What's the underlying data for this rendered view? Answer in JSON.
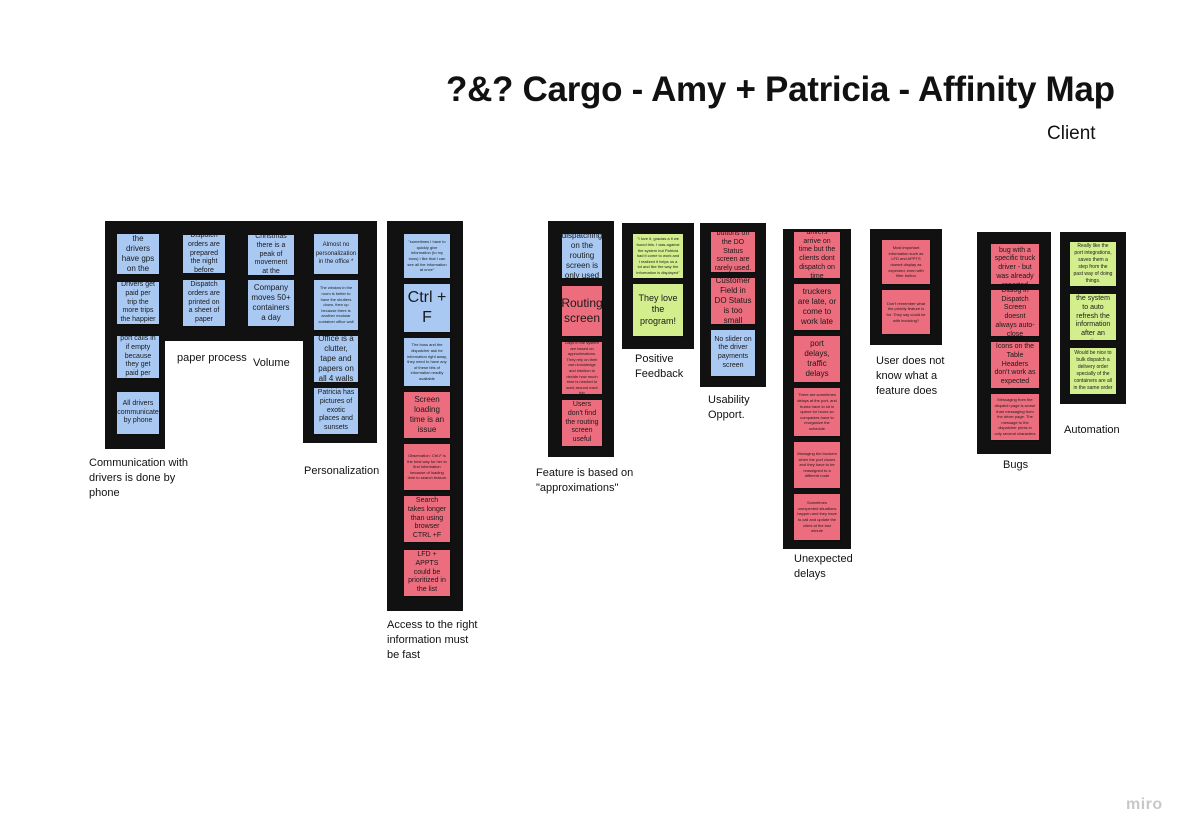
{
  "title": "?&? Cargo - Amy + Patricia - Affinity Map",
  "subtitle": "Client",
  "brand": "miro",
  "colors": {
    "blue_note": "#a9c9f2",
    "red_note": "#ec6d7d",
    "green_note": "#d3ee8c",
    "column": "#111111"
  },
  "groups": {
    "communication": {
      "label": "Communication with drivers is done by phone",
      "notes": [
        "Not all of the drivers have gps on the truck",
        "Truck Drivers get paid per trip the more trips the happier (*for some)",
        "Driver at port calls in if empty because they get paid per trip",
        "All drivers communicate by phone"
      ]
    },
    "paper": {
      "label": "paper process",
      "notes": [
        "Dispatch orders are prepared the night before",
        "Dispatch orders are printed on a sheet of paper"
      ]
    },
    "volume": {
      "label": "Volume",
      "notes": [
        "After Christmas there is a peak of movement at the company.",
        "Company moves 50+ containers a day"
      ]
    },
    "personalization": {
      "label": "Personalization",
      "notes": [
        "Almost no personalization in the office *",
        "The window in the room is better to have the shutters down, then up because there is another modular container office wall",
        "Office is a clutter, tape and papers on all 4 walls",
        "Patricia has pictures of exotic places and sunsets"
      ]
    },
    "access": {
      "label": "Access to the right information must be fast",
      "notes": [
        "\"sometimes I have to quickly give information (to my boss) I like that I can see all the information at once\"",
        "Ctrl + F",
        "The boss and the dispatcher ask for information right away, they need to have any of these bits of information readily available",
        "Screen loading time is an issue",
        "Observation: Ctrl-F is the best way for her to find information because of loading time to search feature",
        "Search takes longer than using browser CTRL +F",
        "LFD + APPTS could be prioritized in the list"
      ]
    },
    "approximations": {
      "label": "Feature is based on \"approximations\"",
      "notes": [
        "pre-dispatching on the routing screen is only used by Amy",
        "Routing screen",
        "Days in the system are based on approximations. They rely on their own knowledge and intuition to decide how much time is needed to work around each trip",
        "Users don't find the routing screen useful"
      ]
    },
    "positive": {
      "label": "Positive Feedback",
      "notes": [
        "\"I love it, gracias a ti we found this. I was against the system but Patricia had it come to work and I realized it helps us a lot and like the way the information is displayed\"",
        "They love the program!"
      ]
    },
    "usability": {
      "label": "Usability Opport.",
      "notes": [
        "buttons on the DO Status screen are rarely used.",
        "Customer Field in DO Status is too small",
        "No slider on the driver payments screen"
      ]
    },
    "delays": {
      "label": "Unexpected delays",
      "notes": [
        "drivers arrive on time but the clients dont dispatch on time",
        "truckers are late, or come to work late",
        "port delays, traffic delays",
        "There are sometimes delays at the port, and trucks have to sit in queue for hours so companies have to reorganize the schedule",
        "Managing the truckers when the port closes and they have to be reassigned to a different route",
        "Sometimes unexpected situations happen and they have to call and update the client at the last minute"
      ]
    },
    "unknown": {
      "label": "User does not know what a feature does",
      "notes": [
        "Most important information such as LFD and APPTS doesnt display as expected, even with filter button",
        "Don't remember what the priority feature is for. They say could be with invoicing?"
      ]
    },
    "bugs": {
      "label": "Bugs",
      "notes": [
        "There is a bug with a specific truck driver - but was already reported",
        "Dialog in Dispatch Screen doesnt always auto-close",
        "Icons on the Table Headers don't work as expected",
        "Messaging from the dispatch page is worse than messaging from the driver page. The message to the dispatcher prints in only several characters"
      ]
    },
    "automation": {
      "label": "Automation",
      "notes": [
        "Really like the port integrations, saves them a step from the past way of doing things.",
        "Would like the system to auto refresh the information after an action.",
        "Would be nice to bulk dispatch a delivery order specially of the containers are all in the same order"
      ]
    }
  }
}
